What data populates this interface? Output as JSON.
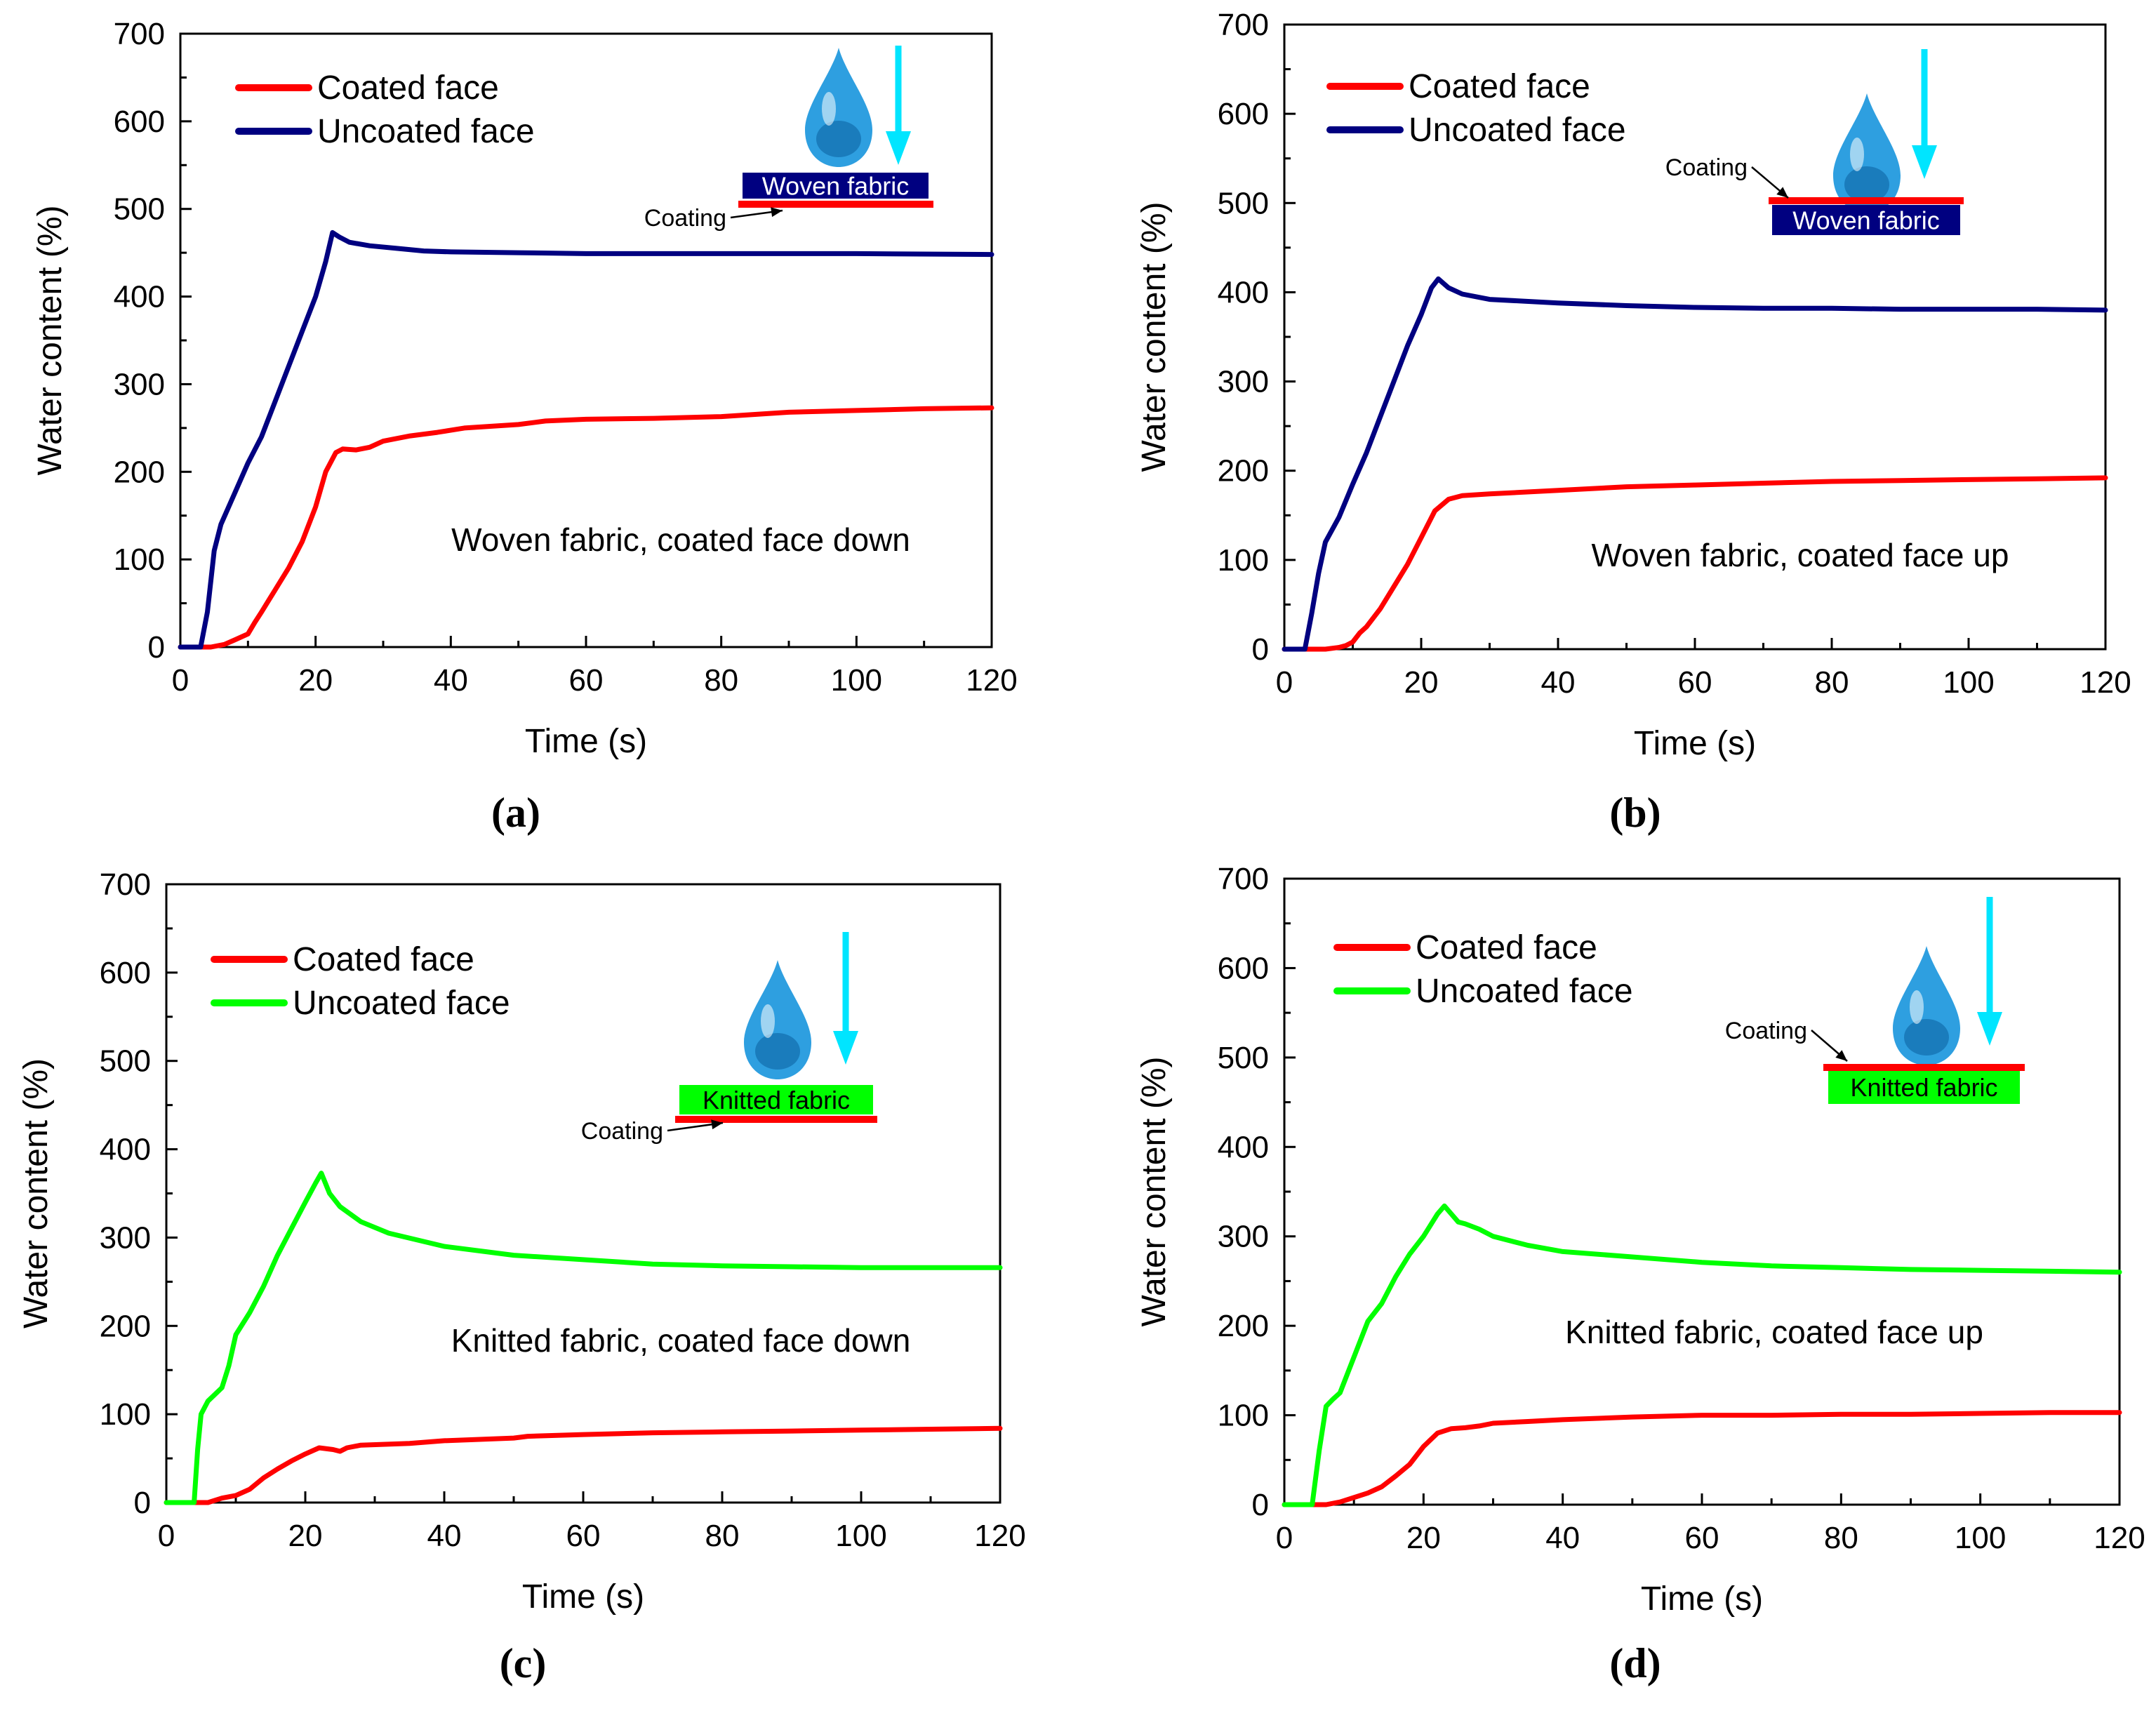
{
  "figure": {
    "background": "#ffffff"
  },
  "chart_data": [
    {
      "type": "line",
      "panel_label": "a",
      "xlabel": "Time (s)",
      "ylabel": "Water content (%)",
      "xlim": [
        0,
        120
      ],
      "ylim": [
        0,
        700
      ],
      "x_ticks": [
        "0",
        "20",
        "40",
        "60",
        "80",
        "100",
        "120"
      ],
      "y_ticks": [
        "0",
        "100",
        "200",
        "300",
        "400",
        "500",
        "600",
        "700"
      ],
      "annotation": "Woven fabric, coated face down",
      "legend_position": "top-left",
      "series": [
        {
          "name": "Coated face",
          "color": "#ff0000",
          "points": [
            [
              0,
              0
            ],
            [
              4.5,
              0
            ],
            [
              6.5,
              3
            ],
            [
              8,
              8
            ],
            [
              10,
              15
            ],
            [
              11,
              28
            ],
            [
              12,
              40
            ],
            [
              14,
              65
            ],
            [
              16,
              90
            ],
            [
              18,
              120
            ],
            [
              20,
              160
            ],
            [
              21.5,
              200
            ],
            [
              23,
              222
            ],
            [
              24,
              226
            ],
            [
              26,
              225
            ],
            [
              28,
              228
            ],
            [
              30,
              235
            ],
            [
              34,
              241
            ],
            [
              38,
              245
            ],
            [
              42,
              250
            ],
            [
              46,
              252
            ],
            [
              50,
              254
            ],
            [
              54,
              258
            ],
            [
              60,
              260
            ],
            [
              70,
              261
            ],
            [
              80,
              263
            ],
            [
              90,
              268
            ],
            [
              100,
              270
            ],
            [
              110,
              272
            ],
            [
              120,
              273
            ]
          ]
        },
        {
          "name": "Uncoated face",
          "color": "#000080",
          "points": [
            [
              0,
              0
            ],
            [
              3,
              0
            ],
            [
              4,
              40
            ],
            [
              5,
              110
            ],
            [
              6,
              140
            ],
            [
              8,
              175
            ],
            [
              10,
              210
            ],
            [
              12,
              240
            ],
            [
              14,
              280
            ],
            [
              16,
              320
            ],
            [
              18,
              360
            ],
            [
              20,
              400
            ],
            [
              21.5,
              440
            ],
            [
              22.5,
              473
            ],
            [
              23.5,
              468
            ],
            [
              25,
              462
            ],
            [
              28,
              458
            ],
            [
              32,
              455
            ],
            [
              36,
              452
            ],
            [
              40,
              451
            ],
            [
              50,
              450
            ],
            [
              60,
              449
            ],
            [
              80,
              449
            ],
            [
              100,
              449
            ],
            [
              120,
              448
            ]
          ]
        }
      ]
    },
    {
      "type": "line",
      "panel_label": "b",
      "xlabel": "Time (s)",
      "ylabel": "Water content (%)",
      "xlim": [
        0,
        120
      ],
      "ylim": [
        0,
        700
      ],
      "x_ticks": [
        "0",
        "20",
        "40",
        "60",
        "80",
        "100",
        "120"
      ],
      "y_ticks": [
        "0",
        "100",
        "200",
        "300",
        "400",
        "500",
        "600",
        "700"
      ],
      "annotation": "Woven fabric, coated face up",
      "legend_position": "top-left",
      "series": [
        {
          "name": "Coated face",
          "color": "#ff0000",
          "points": [
            [
              0,
              0
            ],
            [
              6,
              0
            ],
            [
              8,
              2
            ],
            [
              9,
              4
            ],
            [
              10,
              8
            ],
            [
              11,
              18
            ],
            [
              12,
              25
            ],
            [
              14,
              45
            ],
            [
              16,
              70
            ],
            [
              18,
              95
            ],
            [
              20,
              125
            ],
            [
              22,
              155
            ],
            [
              24,
              168
            ],
            [
              26,
              172
            ],
            [
              30,
              174
            ],
            [
              40,
              178
            ],
            [
              50,
              182
            ],
            [
              60,
              184
            ],
            [
              70,
              186
            ],
            [
              80,
              188
            ],
            [
              90,
              189
            ],
            [
              100,
              190
            ],
            [
              110,
              191
            ],
            [
              120,
              192
            ]
          ]
        },
        {
          "name": "Uncoated face",
          "color": "#000080",
          "points": [
            [
              0,
              0
            ],
            [
              3,
              0
            ],
            [
              4,
              40
            ],
            [
              5,
              85
            ],
            [
              6,
              120
            ],
            [
              8,
              148
            ],
            [
              10,
              185
            ],
            [
              12,
              220
            ],
            [
              14,
              260
            ],
            [
              16,
              300
            ],
            [
              18,
              340
            ],
            [
              20,
              375
            ],
            [
              21.5,
              405
            ],
            [
              22.5,
              415
            ],
            [
              24,
              405
            ],
            [
              26,
              398
            ],
            [
              30,
              392
            ],
            [
              40,
              388
            ],
            [
              50,
              385
            ],
            [
              60,
              383
            ],
            [
              70,
              382
            ],
            [
              80,
              382
            ],
            [
              90,
              381
            ],
            [
              100,
              381
            ],
            [
              110,
              381
            ],
            [
              120,
              380
            ]
          ]
        }
      ]
    },
    {
      "type": "line",
      "panel_label": "c",
      "xlabel": "Time (s)",
      "ylabel": "Water content (%)",
      "xlim": [
        0,
        120
      ],
      "ylim": [
        0,
        700
      ],
      "x_ticks": [
        "0",
        "20",
        "40",
        "60",
        "80",
        "100",
        "120"
      ],
      "y_ticks": [
        "0",
        "100",
        "200",
        "300",
        "400",
        "500",
        "600",
        "700"
      ],
      "annotation": "Knitted fabric, coated face down",
      "legend_position": "top-left",
      "series": [
        {
          "name": "Coated face",
          "color": "#ff0000",
          "points": [
            [
              0,
              0
            ],
            [
              6,
              0
            ],
            [
              8,
              5
            ],
            [
              10,
              8
            ],
            [
              12,
              15
            ],
            [
              14,
              28
            ],
            [
              16,
              38
            ],
            [
              18,
              47
            ],
            [
              20,
              55
            ],
            [
              22,
              62
            ],
            [
              24,
              60
            ],
            [
              25,
              58
            ],
            [
              26,
              62
            ],
            [
              28,
              65
            ],
            [
              35,
              67
            ],
            [
              40,
              70
            ],
            [
              50,
              73
            ],
            [
              52,
              75
            ],
            [
              60,
              77
            ],
            [
              70,
              79
            ],
            [
              80,
              80
            ],
            [
              90,
              81
            ],
            [
              100,
              82
            ],
            [
              110,
              83
            ],
            [
              120,
              84
            ]
          ]
        },
        {
          "name": "Uncoated face",
          "color": "#00ff00",
          "points": [
            [
              0,
              0
            ],
            [
              4,
              0
            ],
            [
              4.5,
              60
            ],
            [
              5,
              100
            ],
            [
              6,
              115
            ],
            [
              8,
              130
            ],
            [
              9,
              155
            ],
            [
              10,
              190
            ],
            [
              12,
              215
            ],
            [
              14,
              245
            ],
            [
              16,
              280
            ],
            [
              18,
              310
            ],
            [
              20,
              340
            ],
            [
              21.5,
              362
            ],
            [
              22.3,
              373
            ],
            [
              23.5,
              350
            ],
            [
              25,
              335
            ],
            [
              28,
              318
            ],
            [
              32,
              305
            ],
            [
              40,
              290
            ],
            [
              50,
              280
            ],
            [
              60,
              275
            ],
            [
              70,
              270
            ],
            [
              80,
              268
            ],
            [
              90,
              267
            ],
            [
              100,
              266
            ],
            [
              110,
              266
            ],
            [
              120,
              266
            ]
          ]
        }
      ]
    },
    {
      "type": "line",
      "panel_label": "d",
      "xlabel": "Time (s)",
      "ylabel": "Water content (%)",
      "xlim": [
        0,
        120
      ],
      "ylim": [
        0,
        700
      ],
      "x_ticks": [
        "0",
        "20",
        "40",
        "60",
        "80",
        "100",
        "120"
      ],
      "y_ticks": [
        "0",
        "100",
        "200",
        "300",
        "400",
        "500",
        "600",
        "700"
      ],
      "annotation": "Knitted fabric, coated face up",
      "legend_position": "top-left",
      "series": [
        {
          "name": "Coated face",
          "color": "#ff0000",
          "points": [
            [
              0,
              0
            ],
            [
              6,
              0
            ],
            [
              8,
              3
            ],
            [
              10,
              8
            ],
            [
              12,
              13
            ],
            [
              14,
              20
            ],
            [
              16,
              32
            ],
            [
              18,
              45
            ],
            [
              20,
              65
            ],
            [
              22,
              80
            ],
            [
              24,
              85
            ],
            [
              26,
              86
            ],
            [
              28,
              88
            ],
            [
              30,
              91
            ],
            [
              35,
              93
            ],
            [
              40,
              95
            ],
            [
              50,
              98
            ],
            [
              60,
              100
            ],
            [
              70,
              100
            ],
            [
              80,
              101
            ],
            [
              90,
              101
            ],
            [
              100,
              102
            ],
            [
              110,
              103
            ],
            [
              120,
              103
            ]
          ]
        },
        {
          "name": "Uncoated face",
          "color": "#00ff00",
          "points": [
            [
              0,
              0
            ],
            [
              4,
              0
            ],
            [
              5,
              60
            ],
            [
              6,
              110
            ],
            [
              7,
              118
            ],
            [
              8,
              125
            ],
            [
              10,
              165
            ],
            [
              12,
              205
            ],
            [
              14,
              225
            ],
            [
              16,
              255
            ],
            [
              18,
              280
            ],
            [
              20,
              300
            ],
            [
              22,
              325
            ],
            [
              23,
              334
            ],
            [
              24,
              325
            ],
            [
              25,
              316
            ],
            [
              26,
              314
            ],
            [
              28,
              308
            ],
            [
              30,
              300
            ],
            [
              35,
              290
            ],
            [
              40,
              283
            ],
            [
              50,
              277
            ],
            [
              60,
              271
            ],
            [
              70,
              267
            ],
            [
              80,
              265
            ],
            [
              90,
              263
            ],
            [
              100,
              262
            ],
            [
              110,
              261
            ],
            [
              120,
              260
            ]
          ]
        }
      ]
    }
  ],
  "insets": [
    {
      "fabric_label": "Woven fabric",
      "coating_label": "Coating",
      "fabric_color": "#000080",
      "fabric_text_color": "#ffffff",
      "coating_color": "#ff0000",
      "drop_color": "#2e9fe0",
      "arrow_color": "#00e5ff"
    },
    {
      "fabric_label": "Woven fabric",
      "coating_label": "Coating",
      "fabric_color": "#000080",
      "fabric_text_color": "#ffffff",
      "coating_color": "#ff0000",
      "drop_color": "#2e9fe0",
      "arrow_color": "#00e5ff"
    },
    {
      "fabric_label": "Knitted fabric",
      "coating_label": "Coating",
      "fabric_color": "#00ff00",
      "fabric_text_color": "#000000",
      "coating_color": "#ff0000",
      "drop_color": "#2e9fe0",
      "arrow_color": "#00e5ff"
    },
    {
      "fabric_label": "Knitted fabric",
      "coating_label": "Coating",
      "fabric_color": "#00ff00",
      "fabric_text_color": "#000000",
      "coating_color": "#ff0000",
      "drop_color": "#2e9fe0",
      "arrow_color": "#00e5ff"
    }
  ],
  "captions": [
    "(a)",
    "(b)",
    "(c)",
    "(d)"
  ]
}
